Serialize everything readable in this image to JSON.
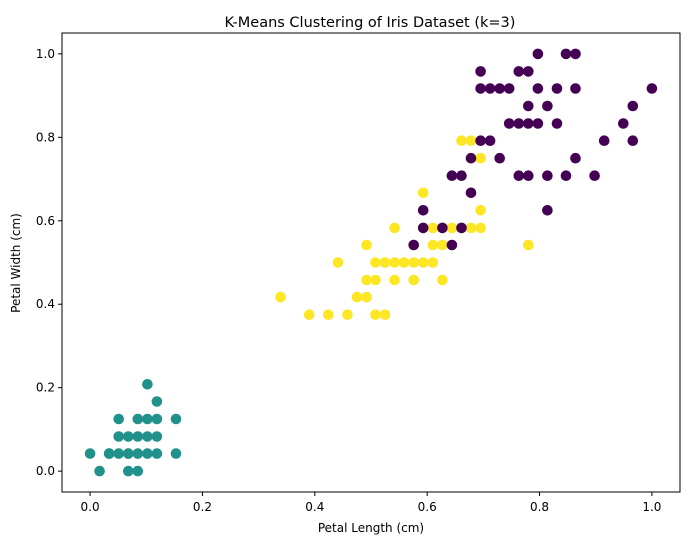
{
  "chart_data": {
    "type": "scatter",
    "title": "K-Means Clustering of Iris Dataset (k=3)",
    "xlabel": "Petal Length (cm)",
    "ylabel": "Petal Width (cm)",
    "xlim": [
      -0.05,
      1.05
    ],
    "ylim": [
      -0.05,
      1.05
    ],
    "xticks": [
      "0.0",
      "0.2",
      "0.4",
      "0.6",
      "0.8",
      "1.0"
    ],
    "yticks": [
      "0.0",
      "0.2",
      "0.4",
      "0.6",
      "0.8",
      "1.0"
    ],
    "grid": false,
    "legend": false,
    "series": [
      {
        "color": "#21918c",
        "points": [
          [
            0.0,
            0.042
          ],
          [
            0.017,
            0.0
          ],
          [
            0.034,
            0.042
          ],
          [
            0.051,
            0.042
          ],
          [
            0.068,
            0.042
          ],
          [
            0.085,
            0.042
          ],
          [
            0.102,
            0.042
          ],
          [
            0.119,
            0.042
          ],
          [
            0.153,
            0.042
          ],
          [
            0.051,
            0.083
          ],
          [
            0.068,
            0.083
          ],
          [
            0.085,
            0.083
          ],
          [
            0.119,
            0.083
          ],
          [
            0.153,
            0.125
          ],
          [
            0.051,
            0.125
          ],
          [
            0.085,
            0.125
          ],
          [
            0.102,
            0.125
          ],
          [
            0.119,
            0.125
          ],
          [
            0.068,
            0.0
          ],
          [
            0.085,
            0.0
          ],
          [
            0.102,
            0.208
          ],
          [
            0.119,
            0.167
          ],
          [
            0.034,
            0.042
          ],
          [
            0.068,
            0.042
          ],
          [
            0.102,
            0.083
          ]
        ]
      },
      {
        "color": "#fde725",
        "points": [
          [
            0.339,
            0.417
          ],
          [
            0.39,
            0.375
          ],
          [
            0.424,
            0.375
          ],
          [
            0.458,
            0.375
          ],
          [
            0.508,
            0.375
          ],
          [
            0.525,
            0.375
          ],
          [
            0.441,
            0.5
          ],
          [
            0.475,
            0.417
          ],
          [
            0.492,
            0.417
          ],
          [
            0.492,
            0.458
          ],
          [
            0.508,
            0.458
          ],
          [
            0.542,
            0.458
          ],
          [
            0.576,
            0.458
          ],
          [
            0.627,
            0.458
          ],
          [
            0.492,
            0.542
          ],
          [
            0.508,
            0.5
          ],
          [
            0.525,
            0.5
          ],
          [
            0.542,
            0.5
          ],
          [
            0.559,
            0.5
          ],
          [
            0.576,
            0.5
          ],
          [
            0.593,
            0.5
          ],
          [
            0.61,
            0.5
          ],
          [
            0.542,
            0.583
          ],
          [
            0.576,
            0.542
          ],
          [
            0.593,
            0.583
          ],
          [
            0.61,
            0.583
          ],
          [
            0.61,
            0.542
          ],
          [
            0.627,
            0.542
          ],
          [
            0.644,
            0.583
          ],
          [
            0.661,
            0.583
          ],
          [
            0.678,
            0.583
          ],
          [
            0.695,
            0.583
          ],
          [
            0.593,
            0.667
          ],
          [
            0.695,
            0.625
          ],
          [
            0.661,
            0.792
          ],
          [
            0.678,
            0.792
          ],
          [
            0.695,
            0.75
          ],
          [
            0.78,
            0.542
          ],
          [
            0.627,
            0.583
          ]
        ]
      },
      {
        "color": "#440154",
        "points": [
          [
            0.593,
            0.625
          ],
          [
            0.593,
            0.583
          ],
          [
            0.627,
            0.583
          ],
          [
            0.644,
            0.542
          ],
          [
            0.576,
            0.542
          ],
          [
            0.661,
            0.583
          ],
          [
            0.644,
            0.708
          ],
          [
            0.661,
            0.708
          ],
          [
            0.678,
            0.667
          ],
          [
            0.678,
            0.75
          ],
          [
            0.695,
            0.792
          ],
          [
            0.712,
            0.792
          ],
          [
            0.729,
            0.75
          ],
          [
            0.695,
            0.917
          ],
          [
            0.695,
            0.958
          ],
          [
            0.712,
            0.917
          ],
          [
            0.729,
            0.917
          ],
          [
            0.746,
            0.917
          ],
          [
            0.746,
            0.833
          ],
          [
            0.763,
            0.833
          ],
          [
            0.78,
            0.833
          ],
          [
            0.797,
            0.833
          ],
          [
            0.763,
            0.708
          ],
          [
            0.78,
            0.708
          ],
          [
            0.763,
            0.958
          ],
          [
            0.78,
            0.958
          ],
          [
            0.78,
            0.875
          ],
          [
            0.797,
            0.917
          ],
          [
            0.797,
            1.0
          ],
          [
            0.814,
            0.875
          ],
          [
            0.831,
            0.917
          ],
          [
            0.831,
            0.833
          ],
          [
            0.814,
            0.708
          ],
          [
            0.814,
            0.625
          ],
          [
            0.847,
            0.708
          ],
          [
            0.847,
            1.0
          ],
          [
            0.864,
            1.0
          ],
          [
            0.864,
            0.917
          ],
          [
            0.864,
            0.75
          ],
          [
            0.898,
            0.708
          ],
          [
            0.915,
            0.792
          ],
          [
            0.949,
            0.833
          ],
          [
            0.966,
            0.875
          ],
          [
            0.966,
            0.792
          ],
          [
            1.0,
            0.917
          ]
        ]
      }
    ]
  }
}
